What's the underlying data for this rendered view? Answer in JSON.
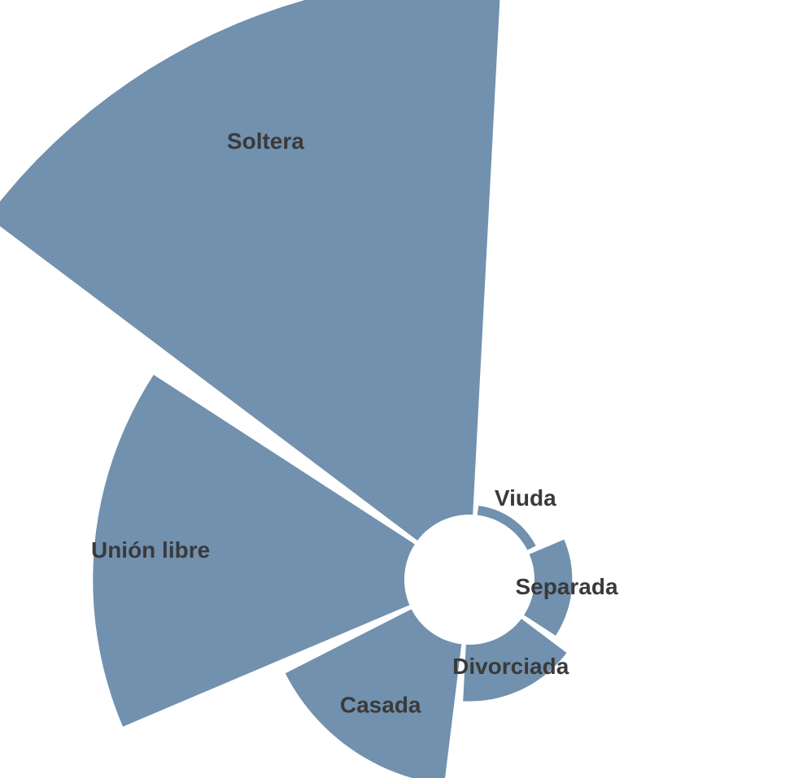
{
  "chart_data": {
    "type": "polar-bar",
    "title": "",
    "categories": [
      "Soltera",
      "Unión libre",
      "Casada",
      "Divorciada",
      "Separada",
      "Viuda"
    ],
    "values": [
      57,
      33,
      15,
      6,
      4,
      1
    ],
    "colors": {
      "bar": "#7191ae",
      "label": "#3a3a3a",
      "background": "#ffffff"
    },
    "grid": false,
    "legend": "none"
  }
}
